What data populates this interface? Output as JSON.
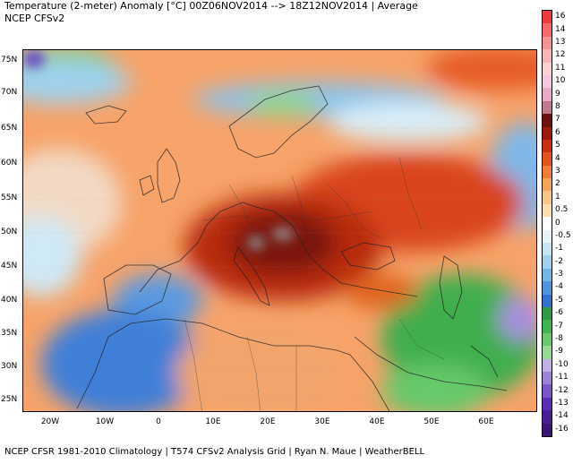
{
  "header": {
    "title": "Temperature (2-meter) Anomaly  [°C] 00Z06NOV2014  -->  18Z12NOV2014 | Average",
    "subtitle": "NCEP  CFSv2"
  },
  "footer": {
    "text": "NCEP CFSR 1981-2010 Climatology | T574 CFSv2 Analysis Grid | Ryan N. Maue | WeatherBELL"
  },
  "map": {
    "lat_labels": [
      "75N",
      "70N",
      "65N",
      "60N",
      "55N",
      "50N",
      "45N",
      "40N",
      "35N",
      "30N",
      "25N"
    ],
    "lon_labels": [
      "20W",
      "10W",
      "0",
      "10E",
      "20E",
      "30E",
      "40E",
      "50E",
      "60E"
    ]
  },
  "colorbar": {
    "labels": [
      "16",
      "14",
      "13",
      "12",
      "11",
      "10",
      "9",
      "8",
      "7",
      "6",
      "5",
      "4",
      "3",
      "2",
      "1",
      "0.5",
      "0",
      "-0.5",
      "-1",
      "-2",
      "-3",
      "-4",
      "-5",
      "-6",
      "-7",
      "-8",
      "-9",
      "-10",
      "-11",
      "-12",
      "-13",
      "-14",
      "-16"
    ],
    "colors": [
      "#ee3b3b",
      "#f26a6a",
      "#f59393",
      "#f8b5b5",
      "#fad2d2",
      "#f3c7dd",
      "#e9a9c8",
      "#c07a8e",
      "#6e1210",
      "#9b1b0e",
      "#c8300f",
      "#e1541f",
      "#ef7d3a",
      "#f5a25c",
      "#f9c586",
      "#fbdfae",
      "#ffffff",
      "#e6f4fa",
      "#c6e6f5",
      "#9fd1ee",
      "#73b6e6",
      "#4f95dd",
      "#3571d0",
      "#2f9a45",
      "#3fb44f",
      "#66c96a",
      "#97da94",
      "#bfb0e6",
      "#9b82d8",
      "#7a56c8",
      "#5b2fb3",
      "#4a1f96",
      "#3b1678"
    ]
  }
}
